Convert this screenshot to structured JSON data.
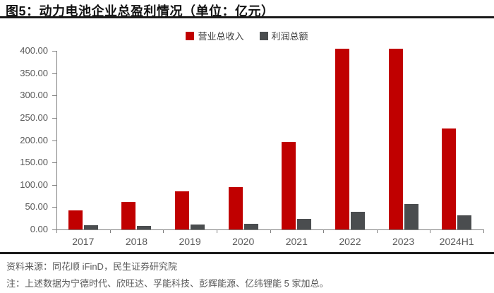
{
  "header": {
    "title": "图5：动力电池企业总盈利情况（单位：亿元）"
  },
  "legend": {
    "revenue_label": "营业总收入",
    "profit_label": "利润总额"
  },
  "chart_data": {
    "type": "bar",
    "title": "动力电池企业总盈利情况（单位：亿元）",
    "categories": [
      "2017",
      "2018",
      "2019",
      "2020",
      "2021",
      "2022",
      "2023",
      "2024H1"
    ],
    "series": [
      {
        "name": "营业总收入",
        "color": "#c00000",
        "values": [
          42,
          61,
          85,
          95,
          196,
          404,
          404,
          226
        ]
      },
      {
        "name": "利润总额",
        "color": "#4a4d4f",
        "values": [
          9,
          8,
          11,
          13,
          24,
          40,
          57,
          32
        ]
      }
    ],
    "xlabel": "",
    "ylabel": "",
    "ylim": [
      0,
      400
    ],
    "ytick_step": 50,
    "ytick_labels": [
      "0.00",
      "50.00",
      "100.00",
      "150.00",
      "200.00",
      "250.00",
      "300.00",
      "350.00",
      "400.00"
    ],
    "legend_position": "top-center",
    "grid": false
  },
  "footer": {
    "source": "资料来源：同花顺 iFinD，民生证券研究院",
    "note": "注：上述数据为宁德时代、欣旺达、孚能科技、彭辉能源、亿纬锂能 5 家加总。"
  },
  "colors": {
    "revenue": "#c00000",
    "profit": "#4a4d4f",
    "rule": "#1a1a1a",
    "axis": "#808080",
    "tick_text": "#595959"
  }
}
